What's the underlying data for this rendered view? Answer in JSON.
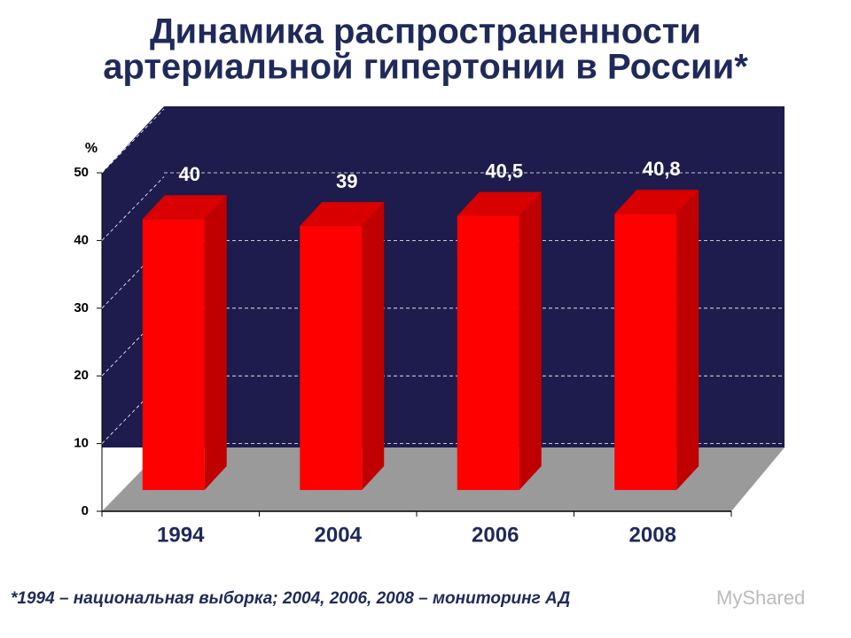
{
  "chart_data": {
    "type": "bar3d",
    "title_lines": [
      "Динамика распространенности",
      "артериальной гипертонии в России*"
    ],
    "y_label": "%",
    "categories": [
      "1994",
      "2004",
      "2006",
      "2008"
    ],
    "values": [
      40,
      39,
      40.5,
      40.8
    ],
    "value_labels": [
      "40",
      "39",
      "40,5",
      "40,8"
    ],
    "color": "#ff0000",
    "ylim": [
      0,
      50
    ],
    "yticks": [
      0,
      10,
      20,
      30,
      40,
      50
    ],
    "grid": true,
    "footnote": "*1994 – национальная выборка; 2004, 2006, 2008 – мониторинг АД",
    "watermark": "MyShared"
  }
}
